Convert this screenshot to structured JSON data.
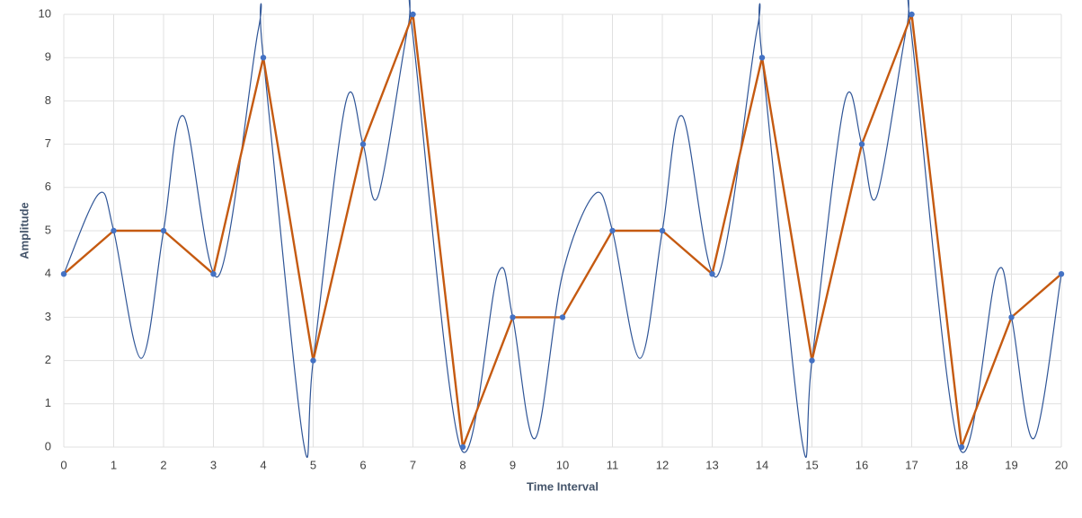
{
  "chart_data": {
    "type": "line",
    "x_label": "Time Interval",
    "y_label": "Amplitude",
    "xlim": [
      0,
      20
    ],
    "ylim": [
      0,
      10
    ],
    "xticks": [
      0,
      1,
      2,
      3,
      4,
      5,
      6,
      7,
      8,
      9,
      10,
      11,
      12,
      13,
      14,
      15,
      16,
      17,
      18,
      19,
      20
    ],
    "yticks": [
      0,
      1,
      2,
      3,
      4,
      5,
      6,
      7,
      8,
      9,
      10
    ],
    "grid": true,
    "series": [
      {
        "color": "#2f5597",
        "smooth": true,
        "markers": false,
        "x": [
          0,
          0.7,
          1,
          1.55,
          2,
          2.4,
          3.1,
          3.9,
          4,
          4.8,
          5,
          5.65,
          6,
          6.3,
          6.9,
          7,
          7.95,
          8.7,
          9,
          9.45,
          10,
          10.65,
          11,
          11.55,
          12,
          12.4,
          13.1,
          13.9,
          14,
          14.8,
          15,
          15.65,
          16,
          16.3,
          16.9,
          17,
          17.95,
          18.7,
          19,
          19.45,
          20
        ],
        "values": [
          4,
          5.85,
          5,
          2.05,
          5,
          7.65,
          3.95,
          9.65,
          9,
          0.15,
          2,
          7.95,
          7,
          5.8,
          9.7,
          9.5,
          0,
          4,
          3,
          0.2,
          4,
          5.85,
          5,
          2.05,
          5,
          7.65,
          3.95,
          9.65,
          9,
          0.15,
          2,
          7.95,
          7,
          5.8,
          9.7,
          9.5,
          0,
          4,
          3,
          0.2,
          4
        ]
      },
      {
        "color": "#c55a11",
        "smooth": false,
        "markers": true,
        "marker_color": "#4472c4",
        "x": [
          0,
          1,
          2,
          3,
          4,
          5,
          6,
          7,
          8,
          9,
          10,
          11,
          12,
          13,
          14,
          15,
          16,
          17,
          18,
          19,
          20
        ],
        "values": [
          4,
          5,
          5,
          4,
          9,
          2,
          7,
          10,
          0,
          3,
          3,
          5,
          5,
          4,
          9,
          2,
          7,
          10,
          0,
          3,
          4
        ]
      }
    ]
  }
}
